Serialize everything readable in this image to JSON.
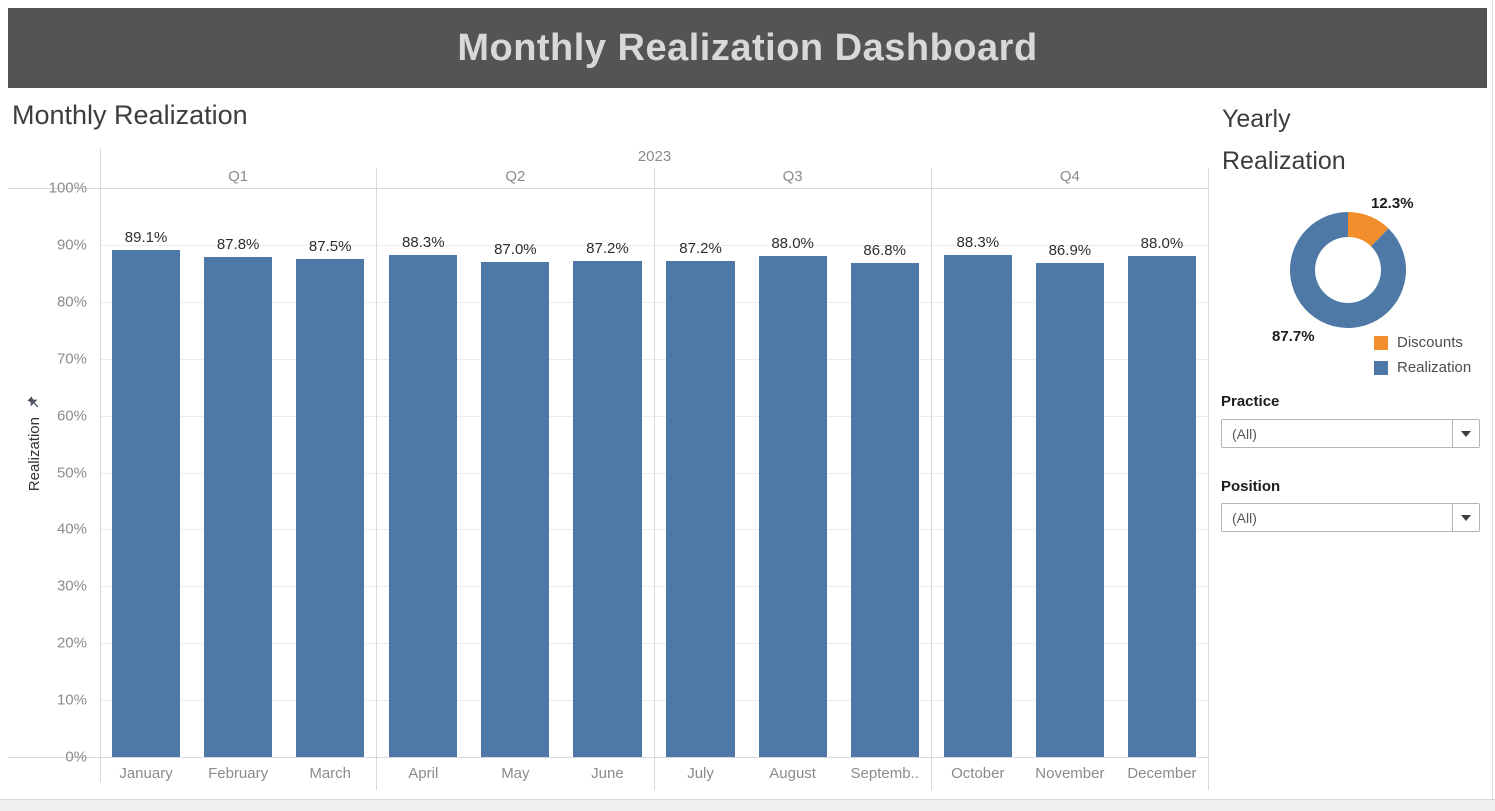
{
  "header": {
    "title": "Monthly Realization Dashboard"
  },
  "colors": {
    "accent_blue": "#4e79a7",
    "accent_orange": "#f28e2b"
  },
  "chart_data": [
    {
      "type": "bar",
      "title": "Monthly Realization",
      "year_label": "2023",
      "ylabel": "Realization",
      "ylim": [
        0,
        100
      ],
      "grid": true,
      "bar_color": "#4e79a7",
      "yticks": [
        {
          "v": 0,
          "label": "0%"
        },
        {
          "v": 10,
          "label": "10%"
        },
        {
          "v": 20,
          "label": "20%"
        },
        {
          "v": 30,
          "label": "30%"
        },
        {
          "v": 40,
          "label": "40%"
        },
        {
          "v": 50,
          "label": "50%"
        },
        {
          "v": 60,
          "label": "60%"
        },
        {
          "v": 70,
          "label": "70%"
        },
        {
          "v": 80,
          "label": "80%"
        },
        {
          "v": 90,
          "label": "90%"
        },
        {
          "v": 100,
          "label": "100%"
        }
      ],
      "quarters": [
        {
          "label": "Q1",
          "months": [
            {
              "name": "January",
              "display": "January",
              "value": 89.1,
              "value_display": "89.1%"
            },
            {
              "name": "February",
              "display": "February",
              "value": 87.8,
              "value_display": "87.8%"
            },
            {
              "name": "March",
              "display": "March",
              "value": 87.5,
              "value_display": "87.5%"
            }
          ]
        },
        {
          "label": "Q2",
          "months": [
            {
              "name": "April",
              "display": "April",
              "value": 88.3,
              "value_display": "88.3%"
            },
            {
              "name": "May",
              "display": "May",
              "value": 87.0,
              "value_display": "87.0%"
            },
            {
              "name": "June",
              "display": "June",
              "value": 87.2,
              "value_display": "87.2%"
            }
          ]
        },
        {
          "label": "Q3",
          "months": [
            {
              "name": "July",
              "display": "July",
              "value": 87.2,
              "value_display": "87.2%"
            },
            {
              "name": "August",
              "display": "August",
              "value": 88.0,
              "value_display": "88.0%"
            },
            {
              "name": "September",
              "display": "Septemb..",
              "value": 86.8,
              "value_display": "86.8%"
            }
          ]
        },
        {
          "label": "Q4",
          "months": [
            {
              "name": "October",
              "display": "October",
              "value": 88.3,
              "value_display": "88.3%"
            },
            {
              "name": "November",
              "display": "November",
              "value": 86.9,
              "value_display": "86.9%"
            },
            {
              "name": "December",
              "display": "December",
              "value": 88.0,
              "value_display": "88.0%"
            }
          ]
        }
      ]
    },
    {
      "type": "donut",
      "title": "Yearly Realization",
      "legend_position": "bottom-right",
      "slices": [
        {
          "label": "Discounts",
          "value": 12.3,
          "display": "12.3%",
          "color": "#f28e2b"
        },
        {
          "label": "Realization",
          "value": 87.7,
          "display": "87.7%",
          "color": "#4e79a7"
        }
      ]
    }
  ],
  "filters": [
    {
      "label": "Practice",
      "value": "(All)"
    },
    {
      "label": "Position",
      "value": "(All)"
    }
  ]
}
